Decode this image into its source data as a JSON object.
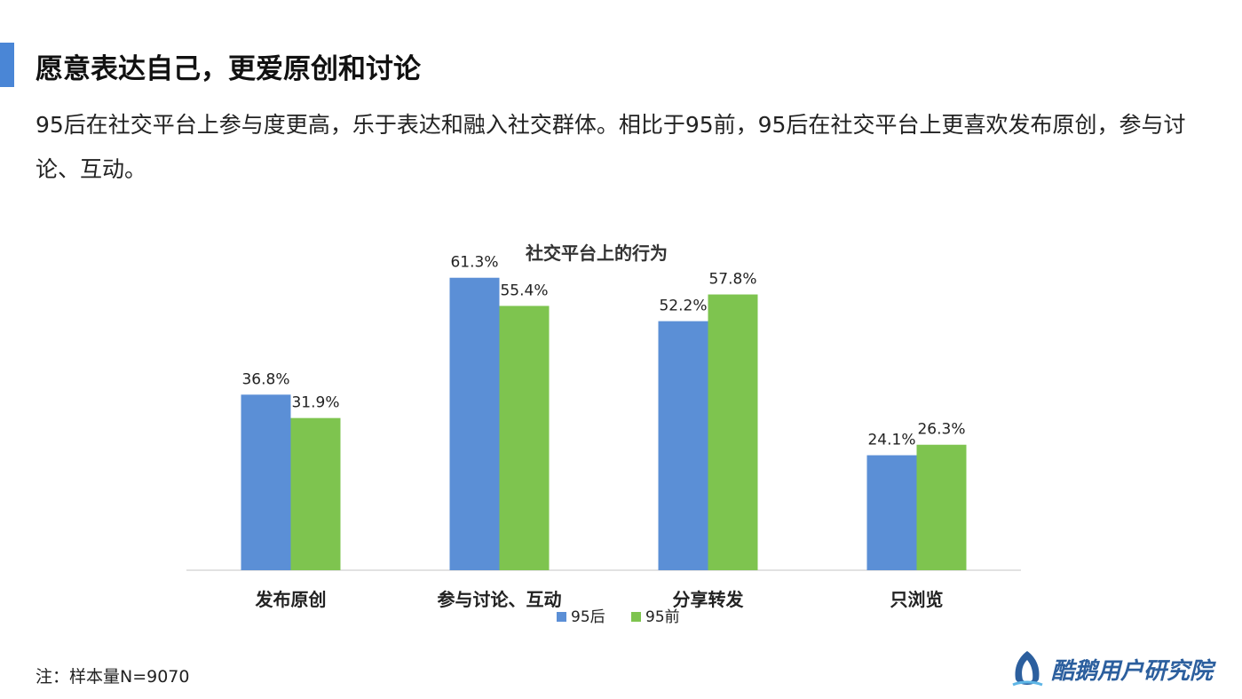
{
  "page": {
    "title": "愿意表达自己，更爱原创和讨论",
    "subtitle": "95后在社交平台上参与度更高，乐于表达和融入社交群体。相比于95前，95后在社交平台上更喜欢发布原创，参与讨论、互动。",
    "note": "注：样本量N=9070",
    "brand": "酷鹅用户研究院",
    "accent_color": "#4a86d6",
    "brand_icon": "penguin-logo-icon"
  },
  "chart_data": {
    "type": "bar",
    "title": "社交平台上的行为",
    "categories": [
      "发布原创",
      "参与讨论、互动",
      "分享转发",
      "只浏览"
    ],
    "series": [
      {
        "name": "95后",
        "values": [
          36.8,
          61.3,
          52.2,
          24.1
        ],
        "labels": [
          "36.8%",
          "61.3%",
          "52.2%",
          "24.1%"
        ],
        "color": "#5b8fd6"
      },
      {
        "name": "95前",
        "values": [
          31.9,
          55.4,
          57.8,
          26.3
        ],
        "labels": [
          "31.9%",
          "55.4%",
          "57.8%",
          "26.3%"
        ],
        "color": "#7ec44f"
      }
    ],
    "ylim": [
      0,
      70
    ],
    "grid": false,
    "legend": "bottom",
    "xlabel": "",
    "ylabel": ""
  }
}
